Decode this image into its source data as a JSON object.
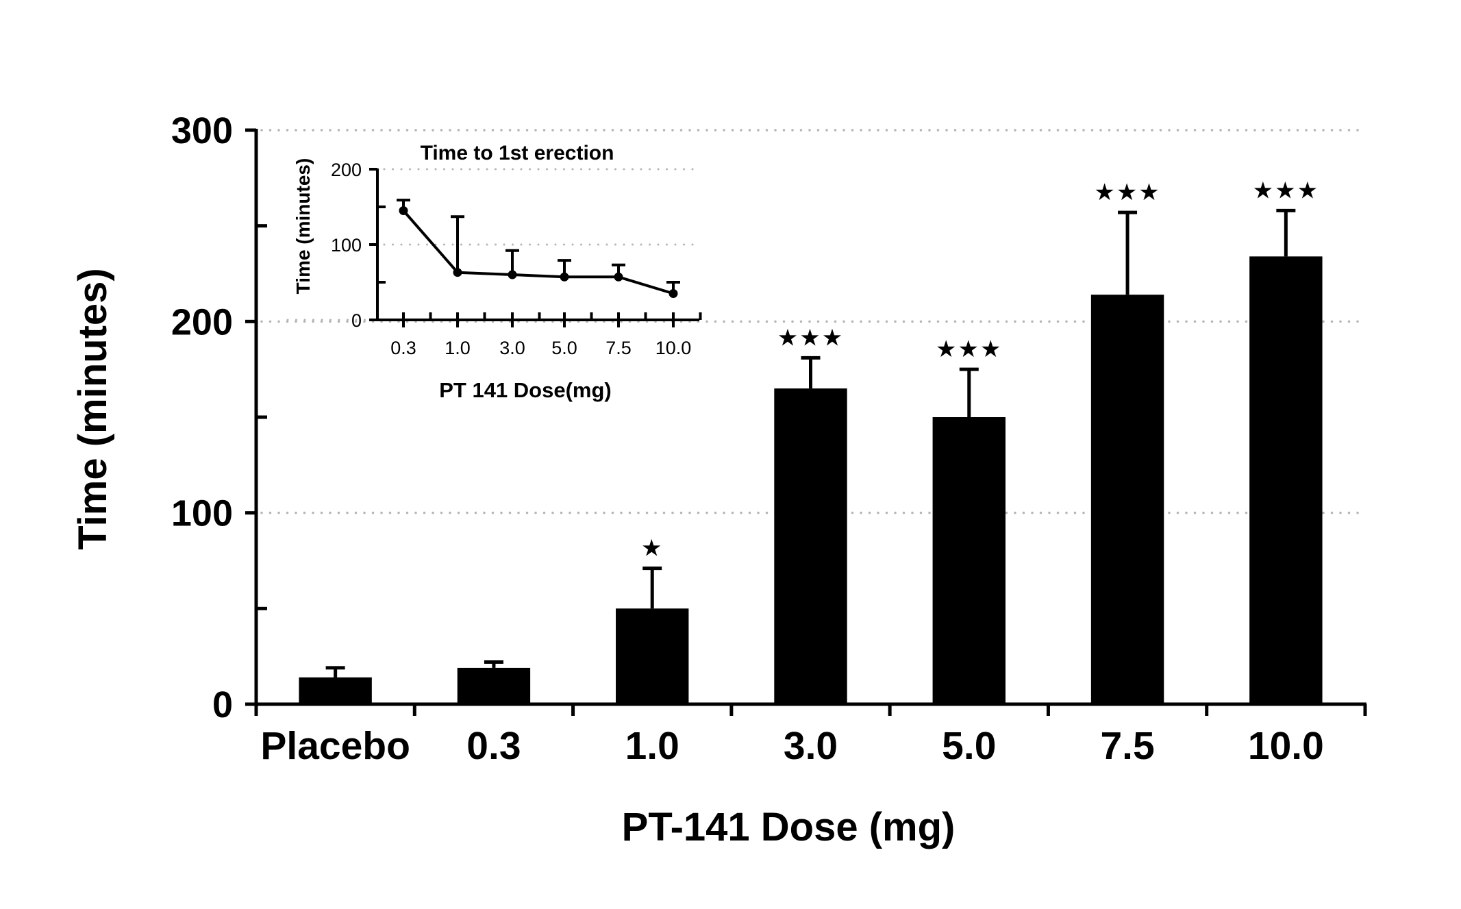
{
  "chart_data": [
    {
      "type": "bar",
      "title": "",
      "xlabel": "PT-141 Dose (mg)",
      "ylabel": "Time (minutes)",
      "ylim": [
        0,
        300
      ],
      "yticks": [
        "0",
        "100",
        "200",
        "300"
      ],
      "ytick_values": [
        0,
        100,
        200,
        300
      ],
      "yminor_values": [
        50,
        150,
        250
      ],
      "grid": "dotted horizontal at major ticks",
      "categories": [
        "Placebo",
        "0.3",
        "1.0",
        "3.0",
        "5.0",
        "7.5",
        "10.0"
      ],
      "series": [
        {
          "name": "Time",
          "values": [
            14,
            19,
            50,
            165,
            150,
            214,
            234
          ],
          "error_upper": [
            19,
            22,
            71,
            181,
            175,
            257,
            258
          ]
        }
      ],
      "annotations": [
        "",
        "",
        "★",
        "★★★",
        "★★★",
        "★★★",
        "★★★"
      ],
      "colors": {
        "bar": "#000000",
        "grid": "#b4b4b4",
        "axis": "#000000"
      }
    },
    {
      "type": "line",
      "title": "Time to 1st erection",
      "xlabel": "PT 141 Dose(mg)",
      "ylabel": "Time (minutes)",
      "ylim": [
        0,
        200
      ],
      "yticks": [
        "0",
        "100",
        "200"
      ],
      "ytick_values": [
        0,
        100,
        200
      ],
      "yminor_values": [
        50,
        150
      ],
      "grid": "dotted horizontal at major ticks",
      "categories": [
        "0.3",
        "1.0",
        "3.0",
        "5.0",
        "7.5",
        "10.0"
      ],
      "series": [
        {
          "name": "Time to 1st erection",
          "values": [
            145,
            63,
            60,
            57,
            57,
            35
          ],
          "error_upper": [
            159,
            137,
            92,
            79,
            73,
            50
          ]
        }
      ],
      "legend": "none",
      "placement": "inset top-left"
    }
  ]
}
